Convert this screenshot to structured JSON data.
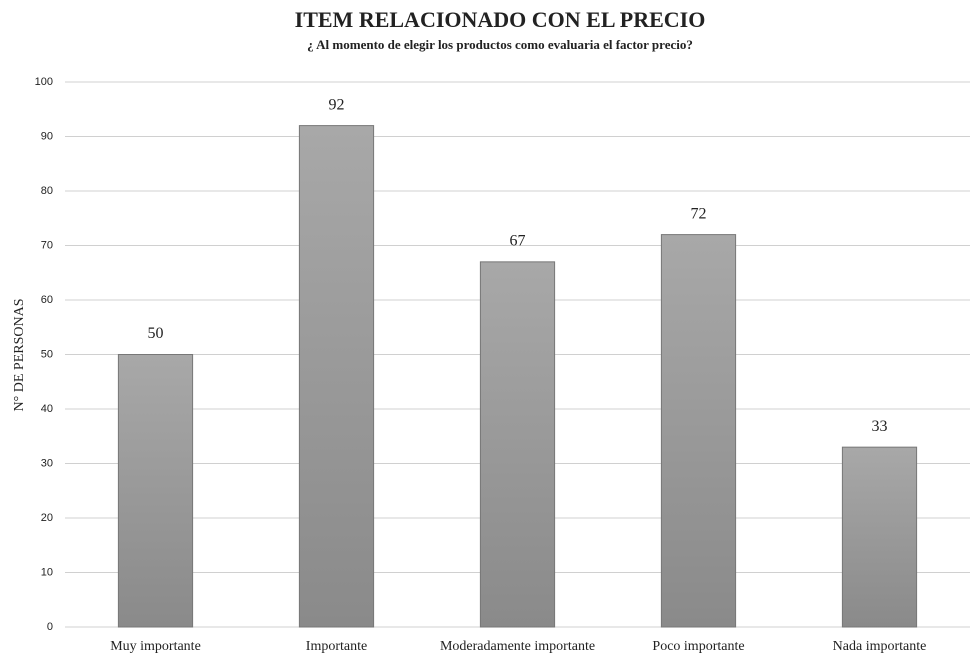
{
  "chart_data": {
    "type": "bar",
    "title": "ITEM RELACIONADO CON EL PRECIO",
    "subtitle": "¿ Al momento de elegir los productos como evaluaria el factor precio?",
    "ylabel": "N° DE PERSONAS",
    "categories": [
      "Muy importante",
      "Importante",
      "Moderadamente importante",
      "Poco importante",
      "Nada importante"
    ],
    "values": [
      50,
      92,
      67,
      72,
      33
    ],
    "color": "#9a9a9a",
    "ylim": [
      0,
      100
    ],
    "yticks": [
      0,
      10,
      20,
      30,
      40,
      50,
      60,
      70,
      80,
      90,
      100
    ],
    "grid": true
  }
}
